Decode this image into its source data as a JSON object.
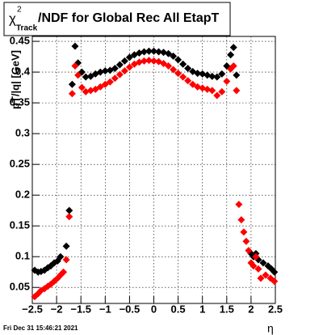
{
  "chart_data": {
    "type": "scatter",
    "title": {
      "symbol": "χ",
      "superscript": "2",
      "subscript": "Track",
      "text": "/NDF for Global Rec All EtapT"
    },
    "y_label": "pT/|q| [GeV]",
    "x_label": "η",
    "footer": "Fri Dec 31 15:46:21 2021",
    "xlim": [
      -2.5,
      2.5
    ],
    "xticks": [
      {
        "value": -2.5,
        "label": "−2.5"
      },
      {
        "value": -2,
        "label": "−2"
      },
      {
        "value": -1.5,
        "label": "−1.5"
      },
      {
        "value": -1,
        "label": "−1"
      },
      {
        "value": -0.5,
        "label": "−0.5"
      },
      0,
      0.5,
      1,
      1.5,
      2,
      2.5
    ],
    "ylim": [
      0.024,
      0.458
    ],
    "yticks": [
      0.05,
      0.1,
      0.15,
      0.2,
      0.25,
      0.3,
      0.35,
      0.4,
      0.45
    ],
    "grid": true,
    "series": [
      {
        "color": "#000000",
        "x": [
          -2.45,
          -2.38,
          -2.32,
          -2.25,
          -2.18,
          -2.12,
          -2.05,
          -1.98,
          -1.92,
          -1.8,
          -1.74,
          -1.68,
          -1.62,
          -1.56,
          -1.48,
          -1.4,
          -1.3,
          -1.2,
          -1.1,
          -1.0,
          -0.9,
          -0.8,
          -0.7,
          -0.6,
          -0.5,
          -0.4,
          -0.3,
          -0.2,
          -0.1,
          0,
          0.1,
          0.2,
          0.3,
          0.4,
          0.5,
          0.6,
          0.7,
          0.8,
          0.9,
          1.0,
          1.1,
          1.2,
          1.3,
          1.4,
          1.5,
          1.58,
          1.64,
          1.7,
          2.0,
          2.05,
          2.1,
          2.15,
          2.25,
          2.35,
          2.42,
          2.48
        ],
        "values": [
          0.078,
          0.075,
          0.076,
          0.078,
          0.082,
          0.085,
          0.09,
          0.093,
          0.1,
          0.117,
          0.175,
          0.38,
          0.442,
          0.415,
          0.4,
          0.392,
          0.393,
          0.397,
          0.4,
          0.402,
          0.403,
          0.406,
          0.412,
          0.418,
          0.424,
          0.428,
          0.431,
          0.433,
          0.434,
          0.434,
          0.433,
          0.432,
          0.43,
          0.426,
          0.42,
          0.413,
          0.406,
          0.401,
          0.398,
          0.397,
          0.395,
          0.393,
          0.392,
          0.397,
          0.41,
          0.428,
          0.44,
          0.395,
          0.105,
          0.1,
          0.105,
          0.095,
          0.09,
          0.085,
          0.08,
          0.075
        ]
      },
      {
        "color": "#ff0000",
        "x": [
          -2.45,
          -2.38,
          -2.32,
          -2.25,
          -2.18,
          -2.12,
          -2.05,
          -1.98,
          -1.92,
          -1.86,
          -1.8,
          -1.74,
          -1.68,
          -1.62,
          -1.56,
          -1.48,
          -1.4,
          -1.3,
          -1.2,
          -1.1,
          -1.0,
          -0.9,
          -0.8,
          -0.7,
          -0.6,
          -0.5,
          -0.4,
          -0.3,
          -0.2,
          -0.1,
          0,
          0.1,
          0.2,
          0.3,
          0.4,
          0.5,
          0.6,
          0.7,
          0.8,
          0.9,
          1.0,
          1.1,
          1.2,
          1.3,
          1.4,
          1.5,
          1.58,
          1.64,
          1.7,
          1.75,
          1.8,
          1.85,
          1.9,
          1.95,
          2.0,
          2.05,
          2.1,
          2.15,
          2.2,
          2.3,
          2.4,
          2.48
        ],
        "values": [
          0.035,
          0.04,
          0.045,
          0.048,
          0.052,
          0.055,
          0.06,
          0.065,
          0.07,
          0.075,
          0.095,
          0.165,
          0.365,
          0.41,
          0.395,
          0.375,
          0.368,
          0.37,
          0.372,
          0.376,
          0.38,
          0.384,
          0.39,
          0.396,
          0.402,
          0.408,
          0.413,
          0.416,
          0.418,
          0.419,
          0.418,
          0.417,
          0.414,
          0.41,
          0.404,
          0.398,
          0.392,
          0.386,
          0.38,
          0.376,
          0.374,
          0.372,
          0.37,
          0.362,
          0.368,
          0.385,
          0.405,
          0.41,
          0.37,
          0.185,
          0.16,
          0.14,
          0.125,
          0.11,
          0.09,
          0.085,
          0.1,
          0.08,
          0.065,
          0.07,
          0.065,
          0.06
        ]
      }
    ]
  }
}
